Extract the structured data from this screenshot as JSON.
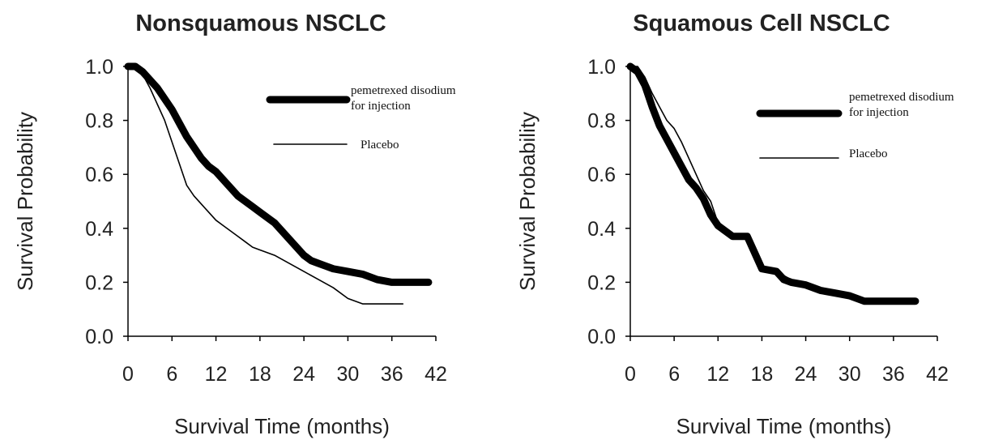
{
  "chart_data": [
    {
      "type": "line",
      "title": "Nonsquamous NSCLC",
      "xlabel": "Survival Time (months)",
      "ylabel": "Survival Probability",
      "xlim": [
        0,
        42
      ],
      "xticks": [
        0,
        6,
        12,
        18,
        24,
        30,
        36,
        42
      ],
      "ylim": [
        0,
        1
      ],
      "yticks": [
        {
          "value": 0,
          "label": "0.0"
        },
        0.2,
        0.4,
        0.6,
        0.8,
        {
          "value": 1,
          "label": "1.0"
        }
      ],
      "series": [
        {
          "name": "pemetrexed disodium for injection",
          "color": "#000000",
          "x": [
            0,
            1,
            2,
            3,
            4,
            5,
            6,
            7,
            8,
            9,
            10,
            11,
            12,
            13,
            14,
            15,
            16,
            17,
            18,
            19,
            20,
            21,
            22,
            23,
            24,
            25,
            26,
            27,
            28,
            30,
            32,
            34,
            36,
            38,
            40,
            41
          ],
          "values": [
            1.0,
            1.0,
            0.98,
            0.95,
            0.92,
            0.88,
            0.84,
            0.79,
            0.74,
            0.7,
            0.66,
            0.63,
            0.61,
            0.58,
            0.55,
            0.52,
            0.5,
            0.48,
            0.46,
            0.44,
            0.42,
            0.39,
            0.36,
            0.33,
            0.3,
            0.28,
            0.27,
            0.26,
            0.25,
            0.24,
            0.23,
            0.21,
            0.2,
            0.2,
            0.2,
            0.2
          ]
        },
        {
          "name": "Placebo",
          "color": "#000000",
          "x": [
            0,
            1,
            2,
            3,
            4,
            5,
            6,
            7,
            8,
            9,
            10,
            11,
            12,
            13,
            14,
            15,
            16,
            17,
            18,
            20,
            22,
            24,
            26,
            28,
            30,
            32,
            34,
            36,
            37.5
          ],
          "values": [
            1.0,
            1.0,
            0.97,
            0.92,
            0.86,
            0.8,
            0.72,
            0.64,
            0.56,
            0.52,
            0.49,
            0.46,
            0.43,
            0.41,
            0.39,
            0.37,
            0.35,
            0.33,
            0.32,
            0.3,
            0.27,
            0.24,
            0.21,
            0.18,
            0.14,
            0.12,
            0.12,
            0.12,
            0.12
          ]
        }
      ]
    },
    {
      "type": "line",
      "title": "Squamous Cell NSCLC",
      "xlabel": "Survival Time (months)",
      "ylabel": "Survival Probability",
      "xlim": [
        0,
        42
      ],
      "xticks": [
        0,
        6,
        12,
        18,
        24,
        30,
        36,
        42
      ],
      "ylim": [
        0,
        1
      ],
      "yticks": [
        {
          "value": 0,
          "label": "0.0"
        },
        0.2,
        0.4,
        0.6,
        0.8,
        {
          "value": 1,
          "label": "1.0"
        }
      ],
      "series": [
        {
          "name": "pemetrexed disodium for injection",
          "color": "#000000",
          "x": [
            0,
            1,
            2,
            3,
            4,
            5,
            6,
            7,
            8,
            9,
            10,
            11,
            12,
            13,
            14,
            16,
            17,
            18,
            20,
            21,
            22,
            24,
            26,
            28,
            30,
            32,
            34,
            36,
            38,
            39
          ],
          "values": [
            1.0,
            0.98,
            0.93,
            0.85,
            0.78,
            0.73,
            0.68,
            0.63,
            0.58,
            0.55,
            0.51,
            0.45,
            0.41,
            0.39,
            0.37,
            0.37,
            0.31,
            0.25,
            0.24,
            0.21,
            0.2,
            0.19,
            0.17,
            0.16,
            0.15,
            0.13,
            0.13,
            0.13,
            0.13,
            0.13
          ]
        },
        {
          "name": "Placebo",
          "color": "#000000",
          "x": [
            0,
            1,
            2,
            3,
            4,
            5,
            6,
            7,
            8,
            9,
            10,
            11,
            12,
            13,
            14,
            16,
            17,
            18,
            20,
            22,
            24,
            26,
            28,
            30,
            32,
            34,
            36,
            38
          ],
          "values": [
            1.0,
            1.0,
            0.96,
            0.9,
            0.85,
            0.8,
            0.77,
            0.72,
            0.66,
            0.6,
            0.54,
            0.5,
            0.42,
            0.38,
            0.37,
            0.37,
            0.3,
            0.25,
            0.24,
            0.21,
            0.19,
            0.17,
            0.17,
            0.14,
            0.14,
            0.13,
            0.13,
            0.14
          ]
        }
      ]
    }
  ]
}
